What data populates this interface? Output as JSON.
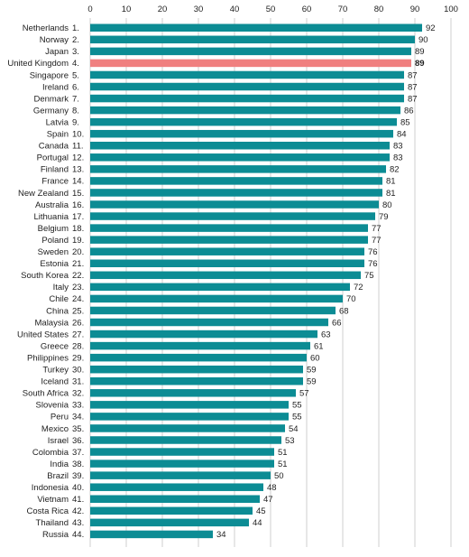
{
  "chart_data": {
    "type": "bar",
    "orientation": "horizontal",
    "title": "",
    "xlabel": "",
    "ylabel": "",
    "xlim": [
      0,
      100
    ],
    "x_ticks": [
      "0",
      "10",
      "20",
      "30",
      "40",
      "50",
      "60",
      "70",
      "80",
      "90",
      "100"
    ],
    "x_axis_position": "top",
    "grid": true,
    "legend": "none",
    "bar_color": "#0c8c94",
    "highlight_color": "#f07f7f",
    "highlight_category": "United Kingdom",
    "categories": [
      "Netherlands",
      "Norway",
      "Japan",
      "United Kingdom",
      "Singapore",
      "Ireland",
      "Denmark",
      "Germany",
      "Latvia",
      "Spain",
      "Canada",
      "Portugal",
      "Finland",
      "France",
      "New Zealand",
      "Australia",
      "Lithuania",
      "Belgium",
      "Poland",
      "Sweden",
      "Estonia",
      "South Korea",
      "Italy",
      "Chile",
      "China",
      "Malaysia",
      "United States",
      "Greece",
      "Philippines",
      "Turkey",
      "Iceland",
      "South Africa",
      "Slovenia",
      "Peru",
      "Mexico",
      "Israel",
      "Colombia",
      "India",
      "Brazil",
      "Indonesia",
      "Vietnam",
      "Costa Rica",
      "Thailand",
      "Russia"
    ],
    "ranks": [
      "1.",
      "2.",
      "3.",
      "4.",
      "5.",
      "6.",
      "7.",
      "8.",
      "9.",
      "10.",
      "11.",
      "12.",
      "13.",
      "14.",
      "15.",
      "16.",
      "17.",
      "18.",
      "19.",
      "20.",
      "21.",
      "22.",
      "23.",
      "24.",
      "25.",
      "26.",
      "27.",
      "28.",
      "29.",
      "30.",
      "31.",
      "32.",
      "33.",
      "34.",
      "35.",
      "36.",
      "37.",
      "38.",
      "39.",
      "40.",
      "41.",
      "42.",
      "43.",
      "44."
    ],
    "values": [
      92,
      90,
      89,
      89,
      87,
      87,
      87,
      86,
      85,
      84,
      83,
      83,
      82,
      81,
      81,
      80,
      79,
      77,
      77,
      76,
      76,
      75,
      72,
      70,
      68,
      66,
      63,
      61,
      60,
      59,
      59,
      57,
      55,
      55,
      54,
      53,
      51,
      51,
      50,
      48,
      47,
      45,
      44,
      34
    ]
  }
}
